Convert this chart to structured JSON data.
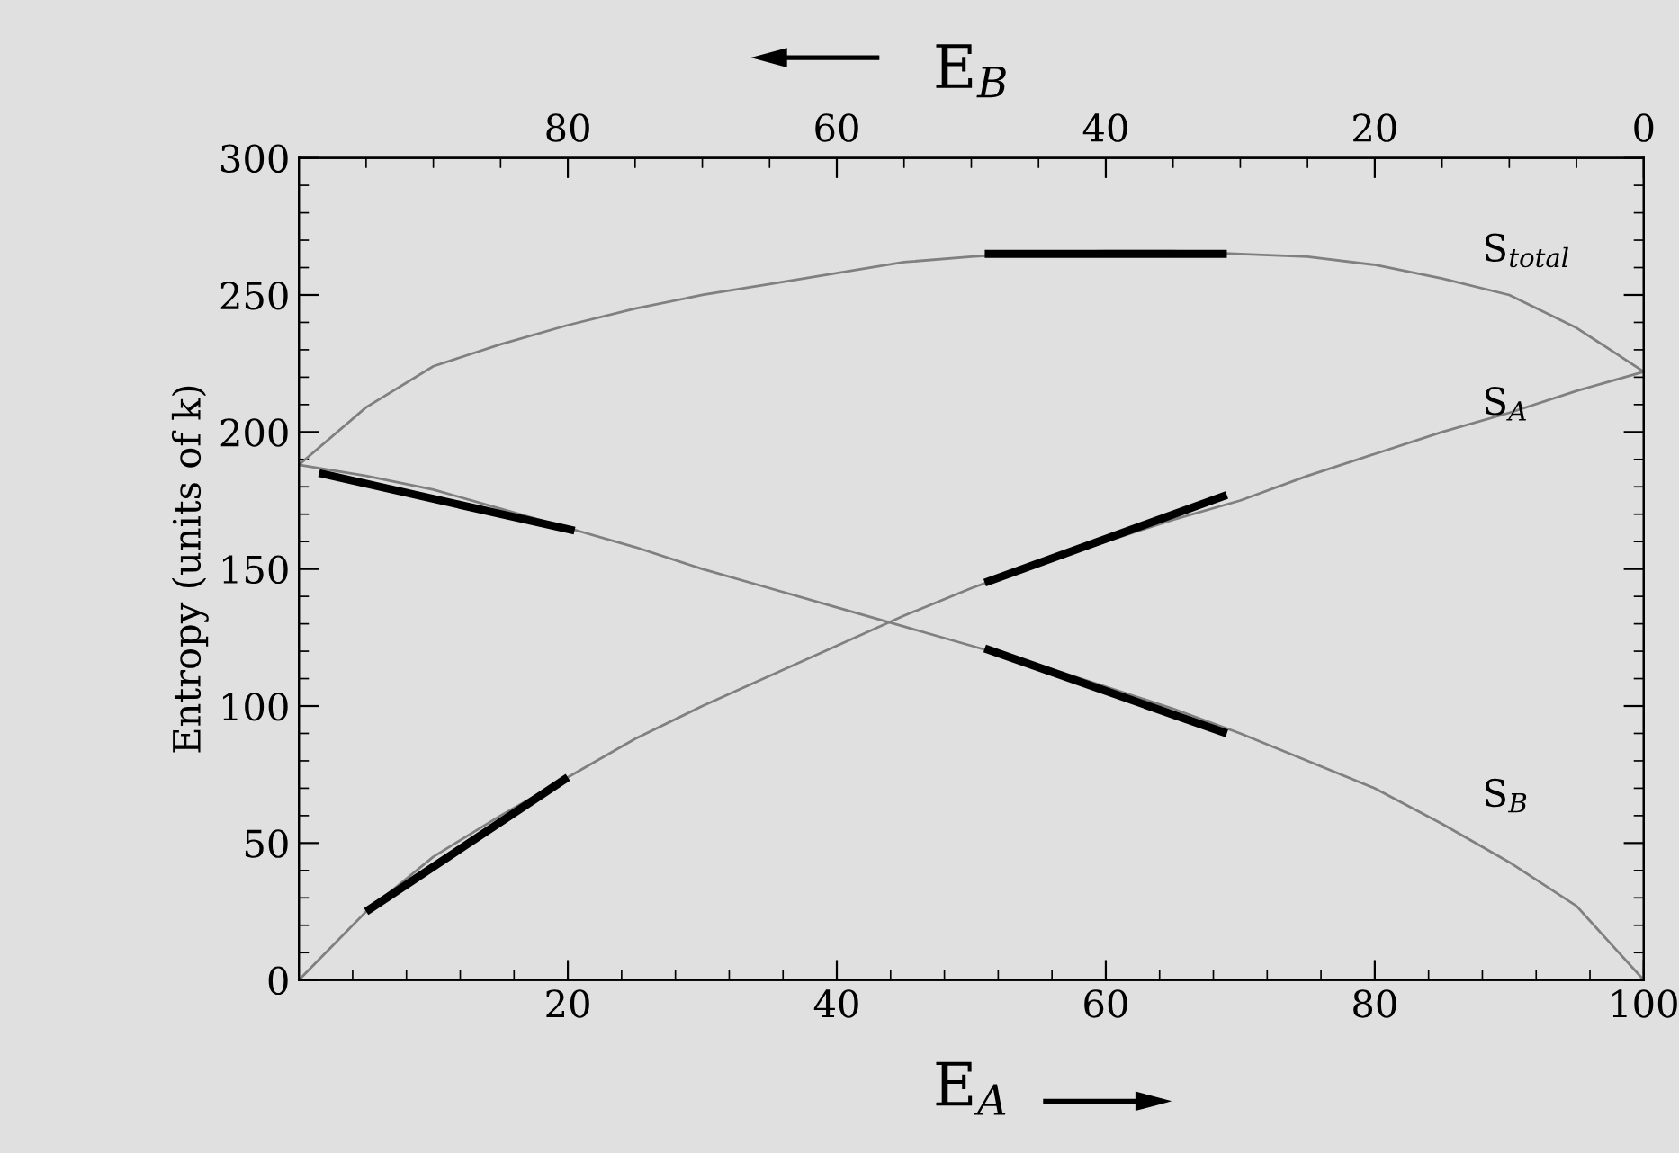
{
  "chart_data": {
    "type": "line",
    "xlabel": "E$_{A}$",
    "x2label": "E$_{B}$",
    "ylabel": "Entropy (units of k)",
    "xlim": [
      0,
      100
    ],
    "xticks": [
      20,
      40,
      60,
      80,
      100
    ],
    "x2lim": [
      100,
      0
    ],
    "x2ticks": [
      80,
      60,
      40,
      20,
      0
    ],
    "ylim": [
      0,
      300
    ],
    "yticks": [
      0,
      50,
      100,
      150,
      200,
      250,
      300
    ],
    "grid": false,
    "marker": "none",
    "line_style": "solid",
    "series": [
      {
        "name": "S$_{total}$",
        "color": "#808080",
        "x": [
          0,
          5,
          10,
          15,
          20,
          25,
          30,
          35,
          40,
          45,
          50,
          55,
          60,
          65,
          70,
          75,
          80,
          85,
          90,
          95,
          100
        ],
        "values": [
          188,
          209,
          224,
          232,
          239,
          245,
          250,
          254,
          258,
          262,
          264,
          265.5,
          266,
          266,
          265,
          264,
          261,
          256,
          250,
          238,
          222
        ]
      },
      {
        "name": "S$_{A}$",
        "color": "#808080",
        "x": [
          0,
          5,
          10,
          15,
          20,
          25,
          30,
          35,
          40,
          45,
          50,
          55,
          60,
          65,
          70,
          75,
          80,
          85,
          90,
          95,
          100
        ],
        "values": [
          0,
          25,
          45,
          60,
          74,
          88,
          100,
          111,
          122,
          133,
          143,
          152,
          160,
          168,
          175,
          184,
          192,
          200,
          207,
          215,
          222
        ]
      },
      {
        "name": "S$_{B}$",
        "color": "#808080",
        "x": [
          0,
          5,
          10,
          15,
          20,
          25,
          30,
          35,
          40,
          45,
          50,
          55,
          60,
          65,
          70,
          75,
          80,
          85,
          90,
          95,
          100
        ],
        "values": [
          188,
          184,
          179,
          172,
          165,
          158,
          150,
          143,
          136,
          129,
          122,
          115,
          107,
          99,
          90,
          80,
          70,
          57,
          43,
          27,
          0
        ]
      },
      {
        "color": "#000000",
        "x": [
          51,
          69
        ],
        "values": [
          265,
          265
        ]
      },
      {
        "color": "#000000",
        "x": [
          5,
          20
        ],
        "values": [
          25,
          74
        ]
      },
      {
        "color": "#000000",
        "x": [
          51,
          69
        ],
        "values": [
          145,
          177
        ]
      },
      {
        "color": "#000000",
        "x": [
          1.5,
          20.5
        ],
        "values": [
          185,
          164
        ]
      },
      {
        "color": "#000000",
        "x": [
          51,
          69
        ],
        "values": [
          121,
          90
        ]
      }
    ]
  }
}
